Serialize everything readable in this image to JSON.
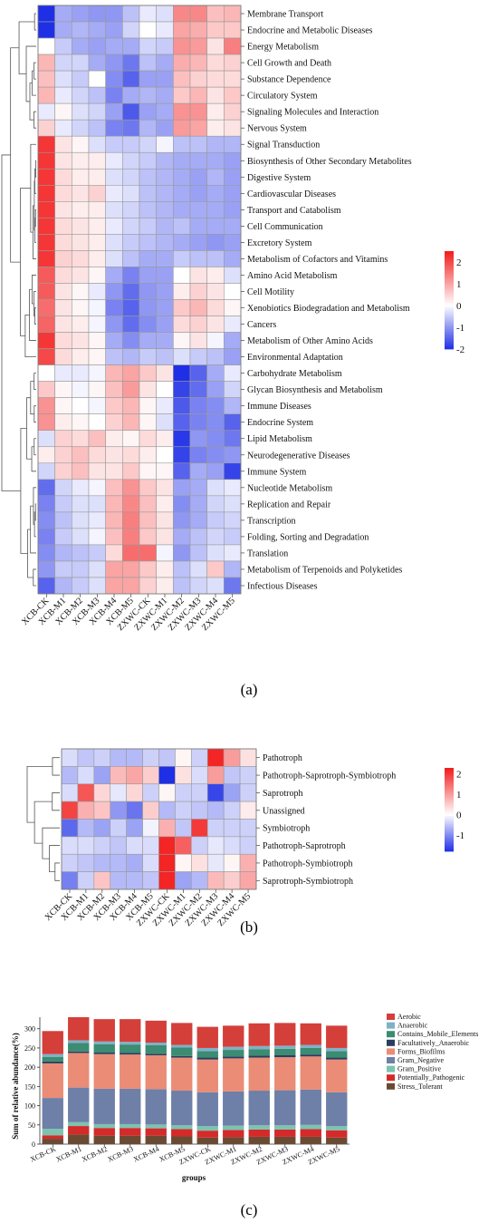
{
  "chart_data": [
    {
      "type": "heatmap",
      "panel": "(a)",
      "columns": [
        "XCB-CK",
        "XCB-M1",
        "XCB-M2",
        "XCB-M3",
        "XCB-M4",
        "XCB-M5",
        "ZXWC-CK",
        "ZXWC-M1",
        "ZXWC-M2",
        "ZXWC-M3",
        "ZXWC-M4",
        "ZXWC-M5"
      ],
      "rows": [
        "Membrane Transport",
        "Endocrine and Metabolic Diseases",
        "Energy Metabolism",
        "Cell Growth and Death",
        "Substance Dependence",
        "Circulatory System",
        "Signaling Molecules and Interaction",
        "Nervous System",
        "Signal Transduction",
        "Biosynthesis of Other Secondary Metabolites",
        "Digestive System",
        "Cardiovascular Diseases",
        "Transport and Catabolism",
        "Cell Communication",
        "Excretory System",
        "Metabolism of Cofactors and Vitamins",
        "Amino Acid Metabolism",
        "Cell Motility",
        "Xenobiotics Biodegradation and Metabolism",
        "Cancers",
        "Metabolism of Other Amino Acids",
        "Environmental Adaptation",
        "Carbohydrate Metabolism",
        "Glycan Biosynthesis and Metabolism",
        "Immune Diseases",
        "Endocrine System",
        "Lipid Metabolism",
        "Neurodegenerative Diseases",
        "Immune System",
        "Nucleotide Metabolism",
        "Replication and Repair",
        "Transcription",
        "Folding, Sorting and Degradation",
        "Translation",
        "Metabolism of Terpenoids and Polyketides",
        "Infectious Diseases"
      ],
      "values": [
        [
          -2.3,
          -0.8,
          -0.9,
          -1.0,
          -1.0,
          -0.6,
          -0.2,
          -0.3,
          1.3,
          1.3,
          0.7,
          0.8
        ],
        [
          -2.3,
          -0.8,
          -0.7,
          -0.8,
          -0.9,
          -0.4,
          0.0,
          -0.2,
          1.0,
          0.9,
          0.6,
          0.6
        ],
        [
          0.0,
          -0.5,
          -0.8,
          -0.9,
          -0.8,
          -0.8,
          -0.4,
          -0.5,
          1.2,
          1.1,
          0.3,
          1.4
        ],
        [
          0.8,
          -0.4,
          -0.4,
          -0.8,
          -1.0,
          -1.3,
          -0.6,
          -0.8,
          0.9,
          0.8,
          0.4,
          0.5
        ],
        [
          0.7,
          -0.3,
          -0.5,
          0.0,
          -1.1,
          -1.5,
          -0.9,
          -0.9,
          0.7,
          0.5,
          0.4,
          0.4
        ],
        [
          0.8,
          -0.2,
          -0.4,
          -0.6,
          -1.2,
          -0.8,
          -0.7,
          -0.8,
          0.6,
          0.8,
          0.3,
          0.6
        ],
        [
          -0.2,
          0.1,
          -0.3,
          -0.4,
          -0.9,
          -1.6,
          -0.9,
          -0.8,
          1.2,
          1.2,
          0.2,
          0.5
        ],
        [
          0.5,
          -0.2,
          -0.4,
          -0.6,
          -1.2,
          -1.3,
          -0.7,
          -0.9,
          1.1,
          1.0,
          0.2,
          0.3
        ],
        [
          2.2,
          0.3,
          0.1,
          -0.3,
          -0.5,
          -0.5,
          -0.4,
          -0.1,
          -0.6,
          -0.6,
          -0.7,
          -0.7
        ],
        [
          2.2,
          0.3,
          0.2,
          0.2,
          -0.2,
          -0.4,
          -0.5,
          -0.7,
          -0.8,
          -0.8,
          -0.8,
          -0.9
        ],
        [
          2.2,
          0.4,
          0.2,
          0.2,
          -0.3,
          -0.4,
          -0.6,
          -0.7,
          -0.8,
          -0.9,
          -0.7,
          -0.9
        ],
        [
          2.2,
          0.4,
          0.3,
          0.5,
          -0.2,
          -0.3,
          -0.6,
          -0.7,
          -0.8,
          -0.9,
          -0.8,
          -0.9
        ],
        [
          2.2,
          0.3,
          0.2,
          0.2,
          -0.3,
          -0.4,
          -0.6,
          -0.7,
          -0.8,
          -0.8,
          -0.8,
          -0.9
        ],
        [
          2.2,
          0.4,
          0.3,
          0.2,
          -0.2,
          -0.4,
          -0.5,
          -0.7,
          -0.6,
          -0.8,
          -0.8,
          -0.8
        ],
        [
          2.2,
          0.4,
          0.3,
          0.2,
          -0.3,
          -0.5,
          -0.6,
          -0.7,
          -0.8,
          -0.9,
          -1.0,
          -0.9
        ],
        [
          2.2,
          0.5,
          0.4,
          0.2,
          -0.3,
          -0.6,
          -0.8,
          -0.8,
          -0.5,
          -0.6,
          -0.6,
          -0.8
        ],
        [
          1.8,
          0.4,
          0.3,
          0.1,
          -0.8,
          -1.2,
          -0.9,
          -0.9,
          0.0,
          0.3,
          0.2,
          -0.3
        ],
        [
          1.8,
          0.3,
          0.1,
          -0.2,
          -1.0,
          -1.4,
          -1.0,
          -0.9,
          0.2,
          0.5,
          0.3,
          0.0
        ],
        [
          1.6,
          0.3,
          0.1,
          -0.1,
          -1.2,
          -1.5,
          -1.0,
          -0.9,
          0.6,
          0.8,
          0.4,
          0.1
        ],
        [
          1.7,
          0.3,
          0.2,
          -0.1,
          -1.0,
          -1.4,
          -1.1,
          -0.9,
          0.4,
          0.5,
          0.3,
          -0.2
        ],
        [
          2.2,
          0.4,
          0.3,
          0.1,
          -0.8,
          -1.1,
          -0.8,
          -0.8,
          0.1,
          0.3,
          -0.1,
          -0.8
        ],
        [
          2.0,
          0.4,
          0.2,
          0.1,
          -0.6,
          -0.7,
          -0.5,
          -0.6,
          -0.3,
          -0.5,
          -0.6,
          -0.9
        ],
        [
          0.0,
          -0.2,
          -0.2,
          -0.1,
          0.8,
          1.0,
          0.6,
          0.3,
          -2.0,
          -1.5,
          -0.8,
          -0.2
        ],
        [
          0.6,
          0.1,
          -0.1,
          0.1,
          0.7,
          1.1,
          0.3,
          0.0,
          -1.8,
          -1.4,
          -0.9,
          -0.4
        ],
        [
          1.2,
          0.1,
          0.0,
          -0.1,
          0.6,
          0.8,
          0.1,
          -0.2,
          -1.6,
          -1.2,
          -1.1,
          -0.7
        ],
        [
          1.2,
          0.2,
          0.1,
          0.0,
          0.5,
          0.8,
          0.1,
          -0.3,
          -1.5,
          -1.2,
          -1.1,
          -1.5
        ],
        [
          -0.3,
          0.5,
          0.4,
          0.7,
          0.2,
          0.1,
          0.4,
          0.2,
          -1.9,
          -1.0,
          -1.1,
          -1.3
        ],
        [
          0.2,
          0.5,
          0.7,
          0.4,
          0.3,
          0.4,
          0.2,
          0.0,
          -1.8,
          -1.2,
          -1.1,
          -1.0
        ],
        [
          -0.4,
          0.5,
          0.7,
          0.3,
          0.3,
          0.6,
          0.1,
          0.1,
          -1.5,
          -0.8,
          -0.9,
          -1.8
        ],
        [
          -1.4,
          -0.4,
          -0.2,
          -0.1,
          0.7,
          1.2,
          0.6,
          0.3,
          -0.9,
          -0.8,
          -0.3,
          -0.2
        ],
        [
          -1.2,
          -0.5,
          -0.3,
          -0.3,
          0.8,
          1.3,
          0.7,
          0.2,
          -1.1,
          -0.8,
          -0.4,
          -0.3
        ],
        [
          -1.1,
          -0.6,
          -0.3,
          -0.2,
          0.8,
          1.4,
          0.7,
          0.3,
          -1.0,
          -0.8,
          -0.5,
          -0.4
        ],
        [
          -1.2,
          -0.5,
          -0.3,
          -0.1,
          0.7,
          1.4,
          0.6,
          0.3,
          -0.8,
          -0.6,
          -0.4,
          -0.5
        ],
        [
          -1.1,
          -0.7,
          -0.6,
          -0.5,
          0.4,
          1.6,
          1.6,
          -0.1,
          -1.0,
          -0.6,
          -0.3,
          -0.2
        ],
        [
          -1.0,
          -0.5,
          -0.5,
          -0.3,
          1.0,
          1.0,
          0.6,
          0.2,
          -0.6,
          -0.3,
          0.6,
          -0.7
        ],
        [
          -1.5,
          -0.7,
          -0.5,
          -0.3,
          1.0,
          1.0,
          0.5,
          0.2,
          -0.6,
          -0.4,
          -0.3,
          -1.3
        ]
      ],
      "colorbar": {
        "min": -2,
        "max": 2.5,
        "ticks": [
          2,
          1,
          0,
          -1,
          -2
        ],
        "tick_labels": [
          "2",
          "1",
          "0",
          "-1",
          "-2"
        ]
      },
      "colors": {
        "low": "#1f2fe6",
        "mid": "#ffffff",
        "high": "#f21b1b"
      }
    },
    {
      "type": "heatmap",
      "panel": "(b)",
      "columns": [
        "XCB-CK",
        "XCB-M1",
        "XCB-M2",
        "XCB-M3",
        "XCB-M4",
        "XCB-M5",
        "ZXWC-CK",
        "ZXWC-M1",
        "ZXWC-M2",
        "ZXWC-M3",
        "ZXWC-M4",
        "ZXWC-M5"
      ],
      "rows": [
        "Pathotroph",
        "Pathotroph-Saprotroph-Symbiotroph",
        "Saprotroph",
        "Unassigned",
        "Symbiotroph",
        "Pathotroph-Saprotroph",
        "Pathotroph-Symbiotroph",
        "Saprotroph-Symbiotroph"
      ],
      "values": [
        [
          -0.3,
          -0.5,
          -0.4,
          -0.6,
          -0.6,
          -0.4,
          -0.5,
          0.1,
          -0.4,
          2.2,
          1.0,
          0.3
        ],
        [
          -0.6,
          -0.3,
          -0.8,
          0.7,
          0.9,
          0.5,
          -1.8,
          0.3,
          -0.3,
          1.0,
          -0.5,
          -0.4
        ],
        [
          -0.3,
          1.7,
          0.4,
          -0.2,
          0.4,
          -0.4,
          0.1,
          -0.4,
          -0.4,
          -1.6,
          -0.8,
          -0.4
        ],
        [
          1.9,
          0.8,
          0.6,
          -0.9,
          -1.2,
          0.5,
          -0.6,
          -0.4,
          -0.5,
          -0.6,
          -0.4,
          0.2
        ],
        [
          -1.3,
          -0.6,
          -0.8,
          -0.4,
          -0.8,
          -0.1,
          0.8,
          -0.5,
          2.0,
          -0.4,
          -0.4,
          -0.4
        ],
        [
          -0.3,
          -0.3,
          -0.4,
          -0.5,
          -0.3,
          -0.3,
          2.2,
          1.6,
          -0.4,
          -0.2,
          -0.3,
          -0.4
        ],
        [
          -0.4,
          -0.5,
          -0.6,
          -0.6,
          -0.7,
          -0.3,
          2.2,
          0.1,
          0.3,
          -0.2,
          0.1,
          0.8
        ],
        [
          -1.1,
          -0.4,
          0.6,
          -0.6,
          -0.6,
          -0.5,
          2.2,
          -0.8,
          -0.6,
          0.7,
          0.5,
          0.9
        ]
      ],
      "colorbar": {
        "min": -1.8,
        "max": 2.3,
        "ticks": [
          2,
          1,
          0,
          -1
        ],
        "tick_labels": [
          "2",
          "1",
          "0",
          "-1"
        ]
      },
      "colors": {
        "low": "#1f2fe6",
        "mid": "#ffffff",
        "high": "#f21b1b"
      }
    },
    {
      "type": "bar",
      "stacked": true,
      "panel": "(c)",
      "categories": [
        "XCB-CK",
        "XCB-M1",
        "XCB-M2",
        "XCB-M3",
        "XCB-M4",
        "XCB-M5",
        "ZXWC-CK",
        "ZXWC-M1",
        "ZXWC-M2",
        "ZXWC-M3",
        "ZXWC-M4",
        "ZXWC-M5"
      ],
      "xlabel": "groups",
      "ylabel": "Sum of relative abundance(%)",
      "ylim": [
        0,
        330
      ],
      "yticks": [
        0,
        50,
        100,
        150,
        200,
        250,
        300
      ],
      "legend_position": "right",
      "series": [
        {
          "name": "Stress_Tolerant",
          "color": "#6b4a34",
          "values": [
            14,
            25,
            22,
            22,
            22,
            20,
            17,
            18,
            19,
            19,
            19,
            17
          ]
        },
        {
          "name": "Potentially_Pathogenic",
          "color": "#d42a2a",
          "values": [
            9,
            22,
            20,
            20,
            19,
            19,
            18,
            19,
            19,
            19,
            20,
            19
          ]
        },
        {
          "name": "Gram_Positive",
          "color": "#7cc3b0",
          "values": [
            17,
            10,
            10,
            10,
            10,
            10,
            12,
            11,
            11,
            11,
            11,
            11
          ]
        },
        {
          "name": "Gram_Negative",
          "color": "#6e7fa8",
          "values": [
            80,
            90,
            92,
            92,
            92,
            90,
            88,
            89,
            90,
            91,
            92,
            88
          ]
        },
        {
          "name": "Forms_Biofilms",
          "color": "#ea8c76",
          "values": [
            90,
            90,
            90,
            89,
            88,
            86,
            85,
            86,
            86,
            86,
            86,
            85
          ]
        },
        {
          "name": "Facultatively_Anaerobic",
          "color": "#2a3d5e",
          "values": [
            5,
            4,
            4,
            4,
            4,
            4,
            5,
            5,
            5,
            5,
            5,
            5
          ]
        },
        {
          "name": "Contains_Mobile_Elements",
          "color": "#3b8c72",
          "values": [
            12,
            22,
            22,
            22,
            22,
            22,
            17,
            17,
            17,
            17,
            17,
            17
          ]
        },
        {
          "name": "Anaerobic",
          "color": "#7fb1c6",
          "values": [
            7,
            7,
            7,
            7,
            7,
            7,
            8,
            8,
            8,
            8,
            8,
            8
          ]
        },
        {
          "name": "Aerobic",
          "color": "#d43f3a",
          "values": [
            60,
            60,
            58,
            59,
            57,
            57,
            55,
            55,
            59,
            59,
            56,
            58
          ]
        }
      ]
    }
  ],
  "panel_labels": [
    "(a)",
    "(b)",
    "(c)"
  ]
}
